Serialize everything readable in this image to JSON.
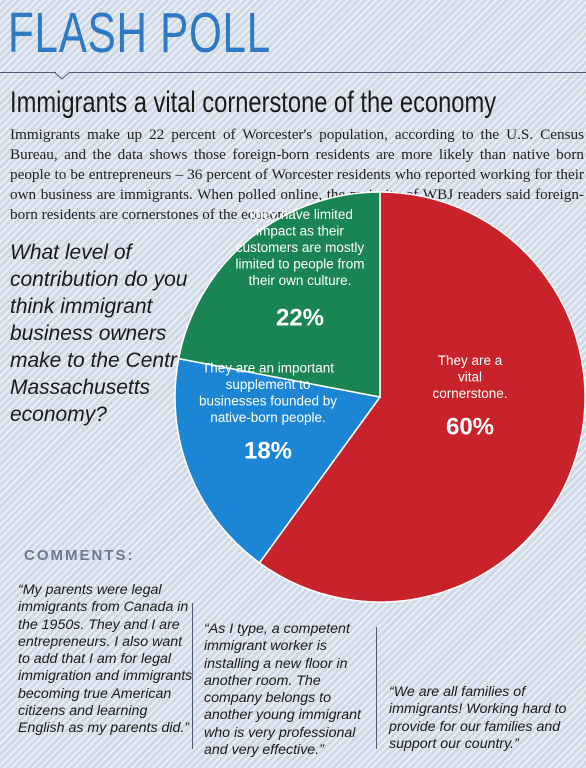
{
  "header": {
    "banner": "FLASH POLL",
    "headline": "Immigrants a vital cornerstone of the economy",
    "intro": "Immigrants make up 22 percent of Worcester's population, according to the U.S. Census Bureau, and the data shows those foreign-born residents are more likely than native born people to be entrepreneurs – 36 percent of Worcester residents who reported working for their own business are immigrants. When polled online, the majority of WBJ readers said foreign-born residents are cornerstones of the economy."
  },
  "question": "What level of contribution do you think immigrant business owners make to the Central Massachusetts economy?",
  "chart_data": {
    "type": "pie",
    "start": "top",
    "direction": "clockwise",
    "slices": [
      {
        "label": "They are a vital cornerstone.",
        "value": 60,
        "value_label": "60%",
        "color": "#c8232b"
      },
      {
        "label": "They are an important supplement to businesses founded by native-born people.",
        "value": 18,
        "value_label": "18%",
        "color": "#1c86d4"
      },
      {
        "label": "They have limited impact as their customers are mostly limited to people from their own culture.",
        "value": 22,
        "value_label": "22%",
        "color": "#1a8552"
      }
    ]
  },
  "comments": {
    "title": "COMMENTS:",
    "items": [
      "“My parents were legal immigrants from Canada in the 1950s. They and I are entrepreneurs. I also want to add that I am for legal immigration and immigrants becoming true American citizens and learning English as my parents did.”",
      "“As I type, a competent immigrant worker is installing a new floor in another room. The company belongs to another young immigrant who is very professional and very effective.”",
      "“We are all families of immigrants! Working hard to provide for our families and support our country.”"
    ]
  },
  "colors": {
    "banner": "#2e78c4",
    "background": "#cfd9e6",
    "rule": "#4a5c72"
  }
}
